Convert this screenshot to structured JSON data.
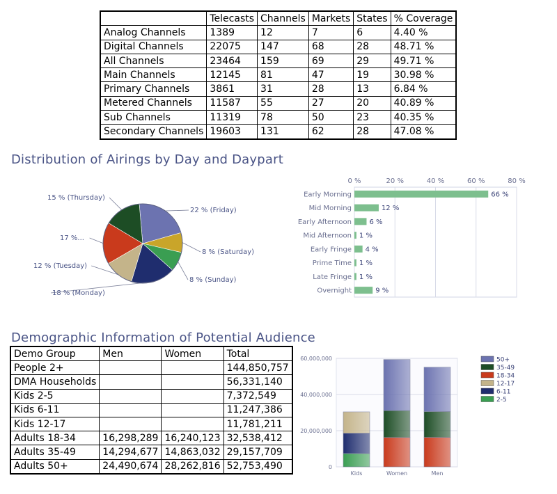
{
  "channels_table": {
    "headers": [
      "",
      "Telecasts",
      "Channels",
      "Markets",
      "States",
      "% Coverage"
    ],
    "rows": [
      [
        "Analog Channels",
        "1389",
        "12",
        "7",
        "6",
        "4.40 %"
      ],
      [
        "Digital Channels",
        "22075",
        "147",
        "68",
        "28",
        "48.71 %"
      ],
      [
        "All Channels",
        "23464",
        "159",
        "69",
        "29",
        "49.71 %"
      ],
      [
        "Main Channels",
        "12145",
        "81",
        "47",
        "19",
        "30.98 %"
      ],
      [
        "Primary Channels",
        "3861",
        "31",
        "28",
        "13",
        "6.84 %"
      ],
      [
        "Metered Channels",
        "11587",
        "55",
        "27",
        "20",
        "40.89 %"
      ],
      [
        "Sub Channels",
        "11319",
        "78",
        "50",
        "23",
        "40.35 %"
      ],
      [
        "Secondary Channels",
        "19603",
        "131",
        "62",
        "28",
        "47.08 %"
      ]
    ]
  },
  "section1_title": "Distribution of Airings by Day and Daypart",
  "section2_title": "Demographic Information of Potential Audience",
  "demo_table": {
    "headers": [
      "Demo Group",
      "Men",
      "Women",
      "Total"
    ],
    "rows": [
      [
        "People 2+",
        "",
        "",
        "144,850,757"
      ],
      [
        "DMA Households",
        "",
        "",
        "56,331,140"
      ],
      [
        "Kids 2-5",
        "",
        "",
        "7,372,549"
      ],
      [
        "Kids 6-11",
        "",
        "",
        "11,247,386"
      ],
      [
        "Kids 12-17",
        "",
        "",
        "11,781,211"
      ],
      [
        "Adults 18-34",
        "16,298,289",
        "16,240,123",
        "32,538,412"
      ],
      [
        "Adults 35-49",
        "14,294,677",
        "14,863,032",
        "29,157,709"
      ],
      [
        "Adults 50+",
        "24,490,674",
        "28,262,816",
        "52,753,490"
      ]
    ]
  },
  "chart_data": [
    {
      "type": "pie",
      "labels": [
        "Friday",
        "Saturday",
        "Sunday",
        "Monday",
        "Tuesday",
        "Wednesday",
        "Thursday"
      ],
      "values": [
        22,
        8,
        8,
        18,
        12,
        17,
        15
      ],
      "data_labels": [
        "22 % (Friday)",
        "8 % (Saturday)",
        "8 % (Sunday)",
        "18 % (Monday)",
        "12 % (Tuesday)",
        "17 %...",
        "15 % (Thursday)"
      ],
      "colors": [
        "#6c73b0",
        "#c9a52a",
        "#3a9e52",
        "#1f2d6e",
        "#c4b48a",
        "#c93a1c",
        "#1d4d25"
      ]
    },
    {
      "type": "bar",
      "orientation": "horizontal",
      "categories": [
        "Early Morning",
        "Mid Morning",
        "Early Afternoon",
        "Mid Afternoon",
        "Early Fringe",
        "Prime Time",
        "Late Fringe",
        "Overnight"
      ],
      "values": [
        66,
        12,
        6,
        1,
        4,
        1,
        1,
        9
      ],
      "data_labels": [
        "66 %",
        "12 %",
        "6 %",
        "1 %",
        "4 %",
        "1 %",
        "1 %",
        "9 %"
      ],
      "x_ticks": [
        "0 %",
        "20 %",
        "40 %",
        "60 %",
        "80 %"
      ],
      "xlim": [
        0,
        80
      ],
      "grid": true,
      "color": "#7dbf8e"
    },
    {
      "type": "bar",
      "stacked": true,
      "categories": [
        "Kids",
        "Women",
        "Men"
      ],
      "y_ticks": [
        "0",
        "20,000,000",
        "40,000,000",
        "60,000,000"
      ],
      "ylim": [
        0,
        60000000
      ],
      "grid": true,
      "legend_position": "right",
      "series": [
        {
          "name": "2-5",
          "color": "#3a9e52",
          "values": [
            7372549,
            0,
            0
          ]
        },
        {
          "name": "6-11",
          "color": "#1f2d6e",
          "values": [
            11247386,
            0,
            0
          ]
        },
        {
          "name": "12-17",
          "color": "#c4b48a",
          "values": [
            11781211,
            0,
            0
          ]
        },
        {
          "name": "18-34",
          "color": "#c93a1c",
          "values": [
            0,
            16240123,
            16298289
          ]
        },
        {
          "name": "35-49",
          "color": "#1d4d25",
          "values": [
            0,
            14863032,
            14294677
          ]
        },
        {
          "name": "50+",
          "color": "#6c73b0",
          "values": [
            0,
            28262816,
            24490674
          ]
        }
      ]
    }
  ]
}
